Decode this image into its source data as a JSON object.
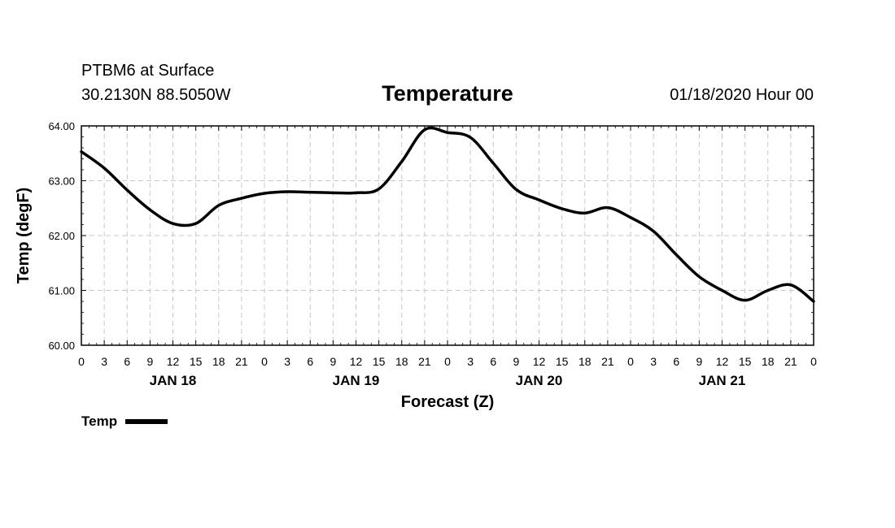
{
  "header": {
    "station": "PTBM6 at Surface",
    "coords": "30.2130N 88.5050W",
    "title": "Temperature",
    "datetime": "01/18/2020 Hour 00"
  },
  "chart_data": {
    "type": "line",
    "title": "Temperature",
    "xlabel": "Forecast (Z)",
    "ylabel": "Temp (degF)",
    "ylim": [
      60.0,
      64.0
    ],
    "yticks": [
      "60.00",
      "61.00",
      "62.00",
      "63.00",
      "64.00"
    ],
    "xlim": [
      0,
      96
    ],
    "x_tick_labels": [
      "0",
      "3",
      "6",
      "9",
      "12",
      "15",
      "18",
      "21",
      "0",
      "3",
      "6",
      "9",
      "12",
      "15",
      "18",
      "21",
      "0",
      "3",
      "6",
      "9",
      "12",
      "15",
      "18",
      "21",
      "0",
      "3",
      "6",
      "9",
      "12",
      "15",
      "18",
      "21",
      "0"
    ],
    "day_labels": [
      {
        "label": "JAN 18",
        "hour": 12
      },
      {
        "label": "JAN 19",
        "hour": 36
      },
      {
        "label": "JAN 20",
        "hour": 60
      },
      {
        "label": "JAN 21",
        "hour": 84
      }
    ],
    "grid": true,
    "legend_position": "bottom-left",
    "series": [
      {
        "name": "Temp",
        "color": "#000000",
        "x": [
          0,
          3,
          6,
          9,
          12,
          15,
          18,
          21,
          24,
          27,
          30,
          33,
          36,
          39,
          42,
          45,
          48,
          51,
          54,
          57,
          60,
          63,
          66,
          69,
          72,
          75,
          78,
          81,
          84,
          87,
          90,
          93,
          96
        ],
        "values": [
          63.53,
          63.23,
          62.83,
          62.47,
          62.22,
          62.22,
          62.55,
          62.68,
          62.77,
          62.8,
          62.79,
          62.78,
          62.78,
          62.85,
          63.35,
          63.93,
          63.88,
          63.79,
          63.32,
          62.84,
          62.65,
          62.49,
          62.41,
          62.51,
          62.33,
          62.08,
          61.65,
          61.25,
          61.0,
          60.82,
          61.0,
          61.1,
          60.8
        ]
      }
    ]
  },
  "legend": {
    "label": "Temp"
  }
}
